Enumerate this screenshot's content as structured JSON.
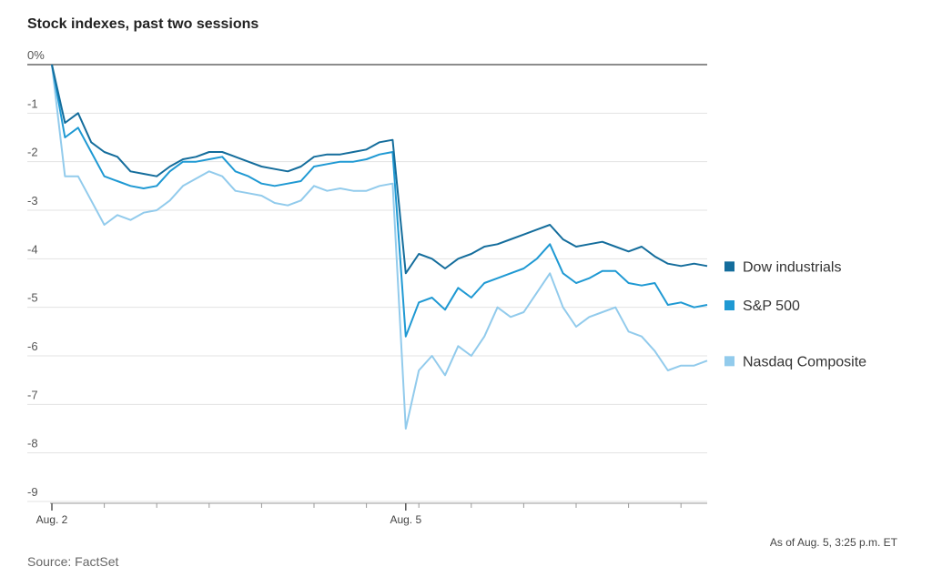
{
  "chart_data": {
    "type": "line",
    "title": "Stock indexes, past two sessions",
    "note": "As of Aug. 5, 3:25 p.m. ET",
    "source": "Source: FactSet",
    "categories": [
      "Aug. 2",
      null,
      null,
      null,
      null,
      null,
      null,
      null,
      null,
      null,
      null,
      null,
      null,
      null,
      null,
      null,
      null,
      null,
      null,
      null,
      null,
      null,
      null,
      null,
      null,
      null,
      null,
      "Aug. 5",
      null,
      null,
      null,
      null,
      null,
      null,
      null,
      null,
      null,
      null,
      null,
      null,
      null,
      null,
      null,
      null,
      null,
      null,
      null,
      null,
      null,
      null,
      null
    ],
    "series": [
      {
        "name": "Dow industrials",
        "color": "#146d9c",
        "values": [
          0,
          -1.2,
          -1.0,
          -1.6,
          -1.8,
          -1.9,
          -2.2,
          -2.25,
          -2.3,
          -2.1,
          -1.95,
          -1.9,
          -1.8,
          -1.8,
          -1.9,
          -2.0,
          -2.1,
          -2.15,
          -2.2,
          -2.1,
          -1.9,
          -1.85,
          -1.85,
          -1.8,
          -1.75,
          -1.6,
          -1.55,
          -4.3,
          -3.9,
          -4.0,
          -4.2,
          -4.0,
          -3.9,
          -3.75,
          -3.7,
          -3.6,
          -3.5,
          -3.4,
          -3.3,
          -3.6,
          -3.75,
          -3.7,
          -3.65,
          -3.75,
          -3.85,
          -3.75,
          -3.95,
          -4.1,
          -4.15,
          -4.1,
          -4.15
        ]
      },
      {
        "name": "S&P 500",
        "color": "#1f99d3",
        "values": [
          0,
          -1.5,
          -1.3,
          -1.8,
          -2.3,
          -2.4,
          -2.5,
          -2.55,
          -2.5,
          -2.2,
          -2.0,
          -2.0,
          -1.95,
          -1.9,
          -2.2,
          -2.3,
          -2.45,
          -2.5,
          -2.45,
          -2.4,
          -2.1,
          -2.05,
          -2.0,
          -2.0,
          -1.95,
          -1.85,
          -1.8,
          -5.6,
          -4.9,
          -4.8,
          -5.05,
          -4.6,
          -4.8,
          -4.5,
          -4.4,
          -4.3,
          -4.2,
          -4.0,
          -3.7,
          -4.3,
          -4.5,
          -4.4,
          -4.25,
          -4.25,
          -4.5,
          -4.55,
          -4.5,
          -4.95,
          -4.9,
          -5.0,
          -4.95
        ]
      },
      {
        "name": "Nasdaq Composite",
        "color": "#92cbec",
        "values": [
          0,
          -2.3,
          -2.3,
          -2.8,
          -3.3,
          -3.1,
          -3.2,
          -3.05,
          -3.0,
          -2.8,
          -2.5,
          -2.35,
          -2.2,
          -2.3,
          -2.6,
          -2.65,
          -2.7,
          -2.85,
          -2.9,
          -2.8,
          -2.5,
          -2.6,
          -2.55,
          -2.6,
          -2.6,
          -2.5,
          -2.45,
          -7.5,
          -6.3,
          -6.0,
          -6.4,
          -5.8,
          -6.0,
          -5.6,
          -5.0,
          -5.2,
          -5.1,
          -4.7,
          -4.3,
          -5.0,
          -5.4,
          -5.2,
          -5.1,
          -5.0,
          -5.5,
          -5.6,
          -5.9,
          -6.3,
          -6.2,
          -6.2,
          -6.1
        ]
      }
    ],
    "ylim": [
      -9,
      0
    ],
    "yticks": [
      {
        "value": 0,
        "label": "0%"
      },
      -1,
      -2,
      -3,
      -4,
      -5,
      -6,
      -7,
      -8,
      -9
    ],
    "grid": true
  }
}
